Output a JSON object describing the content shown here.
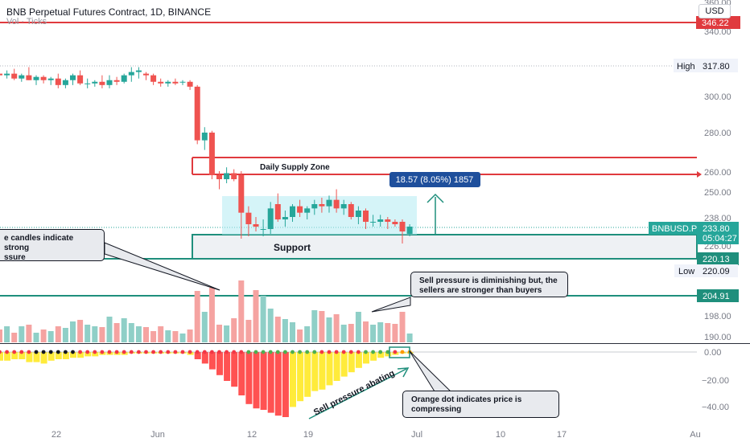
{
  "header": {
    "title": "BNB Perpetual Futures Contract, 1D, BINANCE",
    "volume_label": "Vol · Ticks",
    "currency_button": "USD"
  },
  "price_axis": {
    "ticks": [
      "360.00",
      "340.00",
      "300.00",
      "280.00",
      "260.00",
      "250.00",
      "238.00",
      "226.00",
      "198.00",
      "190.00"
    ],
    "high_label": "High",
    "high_value": "317.80",
    "low_label": "Low",
    "low_value": "220.09",
    "symbol_tag": "BNBUSD.P",
    "last_price": "233.80",
    "countdown": "05:04:27",
    "line_tags": [
      "346.22",
      "220.13",
      "204.91"
    ]
  },
  "indicator_axis": {
    "ticks": [
      "0.00",
      "−20.00",
      "−40.00"
    ]
  },
  "time_axis": {
    "labels": [
      "22",
      "Jun",
      "12",
      "19",
      "Jul",
      "10",
      "17",
      "Au"
    ]
  },
  "annotations": {
    "supply_zone": "Daily Supply Zone",
    "measure": "18.57 (8.05%) 1857",
    "support": "Support",
    "sell_abating": "Sell pressure abating",
    "callout_candles": "e candles indicate strong\nssure",
    "callout_diminishing": "Sell pressure is diminishing but, the\nsellers are stronger than buyers",
    "callout_orange_dot": "Orange dot indicates price is\ncompressing"
  },
  "colors": {
    "up": "#26a69a",
    "down": "#ef5350",
    "vol_up": "#8fcfc7",
    "vol_down": "#f5a3a1",
    "supply_line": "#e03a3e",
    "support_line": "#1f8f7c",
    "measure_bg": "#1e4f9c",
    "squeeze_yellow": "#ffeb3b",
    "squeeze_red": "#ff5252"
  },
  "chart_data": {
    "type": "candlestick",
    "candles": [
      {
        "o": 314,
        "h": 316,
        "l": 310,
        "c": 313
      },
      {
        "o": 313,
        "h": 316,
        "l": 311,
        "c": 314
      },
      {
        "o": 314,
        "h": 317,
        "l": 310,
        "c": 311
      },
      {
        "o": 311,
        "h": 314,
        "l": 309,
        "c": 313
      },
      {
        "o": 313,
        "h": 318,
        "l": 310,
        "c": 310
      },
      {
        "o": 310,
        "h": 313,
        "l": 307,
        "c": 312
      },
      {
        "o": 312,
        "h": 313,
        "l": 308,
        "c": 310
      },
      {
        "o": 310,
        "h": 312,
        "l": 307,
        "c": 311
      },
      {
        "o": 311,
        "h": 314,
        "l": 305,
        "c": 307
      },
      {
        "o": 307,
        "h": 311,
        "l": 305,
        "c": 310
      },
      {
        "o": 310,
        "h": 314,
        "l": 307,
        "c": 313
      },
      {
        "o": 313,
        "h": 316,
        "l": 307,
        "c": 308
      },
      {
        "o": 308,
        "h": 311,
        "l": 305,
        "c": 308
      },
      {
        "o": 308,
        "h": 310,
        "l": 306,
        "c": 309
      },
      {
        "o": 309,
        "h": 313,
        "l": 305,
        "c": 307
      },
      {
        "o": 307,
        "h": 313,
        "l": 305,
        "c": 310
      },
      {
        "o": 310,
        "h": 312,
        "l": 307,
        "c": 309
      },
      {
        "o": 309,
        "h": 314,
        "l": 308,
        "c": 313
      },
      {
        "o": 313,
        "h": 318,
        "l": 309,
        "c": 315
      },
      {
        "o": 315,
        "h": 318,
        "l": 311,
        "c": 316
      },
      {
        "o": 314,
        "h": 315,
        "l": 310,
        "c": 313
      },
      {
        "o": 313,
        "h": 314,
        "l": 307,
        "c": 309
      },
      {
        "o": 309,
        "h": 311,
        "l": 306,
        "c": 308
      },
      {
        "o": 308,
        "h": 310,
        "l": 306,
        "c": 309
      },
      {
        "o": 309,
        "h": 311,
        "l": 307,
        "c": 308
      },
      {
        "o": 309,
        "h": 310,
        "l": 307,
        "c": 309
      },
      {
        "o": 309,
        "h": 310,
        "l": 304,
        "c": 306
      },
      {
        "o": 306,
        "h": 307,
        "l": 274,
        "c": 276
      },
      {
        "o": 276,
        "h": 283,
        "l": 271,
        "c": 280
      },
      {
        "o": 280,
        "h": 281,
        "l": 256,
        "c": 258
      },
      {
        "o": 258,
        "h": 260,
        "l": 251,
        "c": 256
      },
      {
        "o": 256,
        "h": 262,
        "l": 254,
        "c": 259
      },
      {
        "o": 259,
        "h": 261,
        "l": 255,
        "c": 256
      },
      {
        "o": 258,
        "h": 260,
        "l": 229,
        "c": 240
      },
      {
        "o": 240,
        "h": 243,
        "l": 230,
        "c": 235
      },
      {
        "o": 235,
        "h": 238,
        "l": 232,
        "c": 234
      },
      {
        "o": 233,
        "h": 237,
        "l": 230,
        "c": 233
      },
      {
        "o": 233,
        "h": 245,
        "l": 231,
        "c": 242
      },
      {
        "o": 244,
        "h": 249,
        "l": 236,
        "c": 237
      },
      {
        "o": 237,
        "h": 241,
        "l": 234,
        "c": 238
      },
      {
        "o": 238,
        "h": 244,
        "l": 236,
        "c": 243
      },
      {
        "o": 243,
        "h": 246,
        "l": 238,
        "c": 240
      },
      {
        "o": 240,
        "h": 243,
        "l": 237,
        "c": 242
      },
      {
        "o": 242,
        "h": 246,
        "l": 239,
        "c": 244
      },
      {
        "o": 244,
        "h": 247,
        "l": 240,
        "c": 243
      },
      {
        "o": 243,
        "h": 248,
        "l": 240,
        "c": 246
      },
      {
        "o": 246,
        "h": 251,
        "l": 240,
        "c": 242
      },
      {
        "o": 242,
        "h": 246,
        "l": 239,
        "c": 244
      },
      {
        "o": 244,
        "h": 245,
        "l": 237,
        "c": 238
      },
      {
        "o": 238,
        "h": 243,
        "l": 235,
        "c": 241
      },
      {
        "o": 241,
        "h": 242,
        "l": 233,
        "c": 236
      },
      {
        "o": 236,
        "h": 239,
        "l": 234,
        "c": 236
      },
      {
        "o": 236,
        "h": 239,
        "l": 234,
        "c": 237
      },
      {
        "o": 237,
        "h": 238,
        "l": 233,
        "c": 236
      },
      {
        "o": 236,
        "h": 237,
        "l": 234,
        "c": 235
      },
      {
        "o": 236,
        "h": 237,
        "l": 227,
        "c": 232
      },
      {
        "o": 231,
        "h": 235,
        "l": 230,
        "c": 234
      }
    ],
    "volume": [
      16,
      20,
      12,
      20,
      22,
      12,
      16,
      14,
      20,
      18,
      26,
      28,
      22,
      20,
      19,
      32,
      24,
      30,
      24,
      20,
      19,
      14,
      20,
      15,
      14,
      11,
      16,
      64,
      38,
      68,
      22,
      21,
      30,
      77,
      28,
      65,
      58,
      42,
      32,
      29,
      25,
      16,
      20,
      40,
      39,
      31,
      35,
      22,
      23,
      38,
      26,
      22,
      25,
      24,
      23,
      38,
      11
    ],
    "histogram": [
      -6,
      -6,
      -5,
      -5,
      -7,
      -7,
      -8,
      -6,
      -5,
      -5,
      -4,
      -4,
      -3,
      -3,
      -2,
      -2,
      -2,
      -2,
      -1,
      -1,
      -1,
      -1,
      -1,
      -1,
      -1,
      -1,
      -2,
      -5,
      -8,
      -12,
      -16,
      -20,
      -24,
      -30,
      -36,
      -39,
      -40,
      -42,
      -44,
      -45,
      -38,
      -34,
      -31,
      -27,
      -26,
      -23,
      -20,
      -17,
      -14,
      -11,
      -8,
      -6,
      -4,
      -3,
      -2,
      -1,
      -1
    ],
    "squeeze_dots": [
      "red",
      "red",
      "red",
      "red",
      "red",
      "black",
      "black",
      "black",
      "black",
      "black",
      "black",
      "red",
      "red",
      "red",
      "red",
      "red",
      "red",
      "red",
      "red",
      "red",
      "red",
      "red",
      "red",
      "red",
      "red",
      "red",
      "red",
      "red",
      "red",
      "red",
      "red",
      "red",
      "red",
      "red",
      "green",
      "green",
      "green",
      "green",
      "green",
      "green",
      "green",
      "green",
      "green",
      "green",
      "red",
      "red",
      "red",
      "red",
      "red",
      "red",
      "green",
      "green",
      "green",
      "green",
      "red",
      "orange",
      "orange"
    ],
    "price_range": [
      185,
      362
    ],
    "oscillator_range": [
      -50,
      3
    ],
    "levels": {
      "resistance": 346.22,
      "high": 317.8,
      "supply_top": 266,
      "supply_bottom": 258,
      "support_top": 232,
      "support_bottom": 220.13,
      "low": 220.09,
      "volume_line": 204.91
    }
  }
}
